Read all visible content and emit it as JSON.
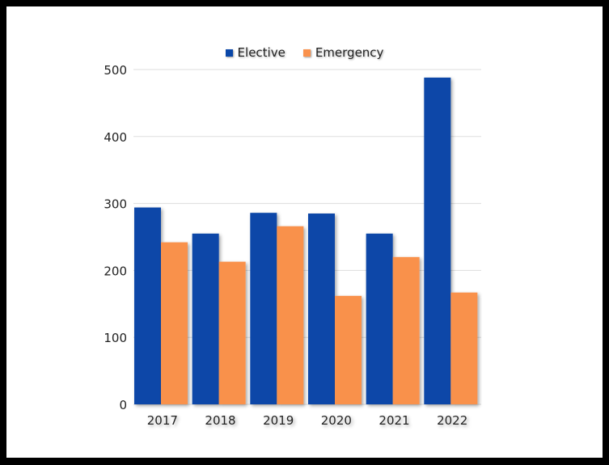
{
  "chart_data": {
    "type": "bar",
    "categories": [
      "2017",
      "2018",
      "2019",
      "2020",
      "2021",
      "2022"
    ],
    "series": [
      {
        "name": "Elective",
        "values": [
          294,
          255,
          286,
          285,
          255,
          488
        ]
      },
      {
        "name": "Emergency",
        "values": [
          242,
          213,
          266,
          162,
          220,
          167
        ]
      }
    ],
    "ylim": [
      0,
      500
    ],
    "yticks": [
      "0",
      "100",
      "200",
      "300",
      "400",
      "500"
    ],
    "legend_position": "top-center",
    "grid": true,
    "colors": {
      "Elective": "#0a47a8",
      "Emergency": "#f9914c",
      "grid": "#dddddd"
    }
  }
}
